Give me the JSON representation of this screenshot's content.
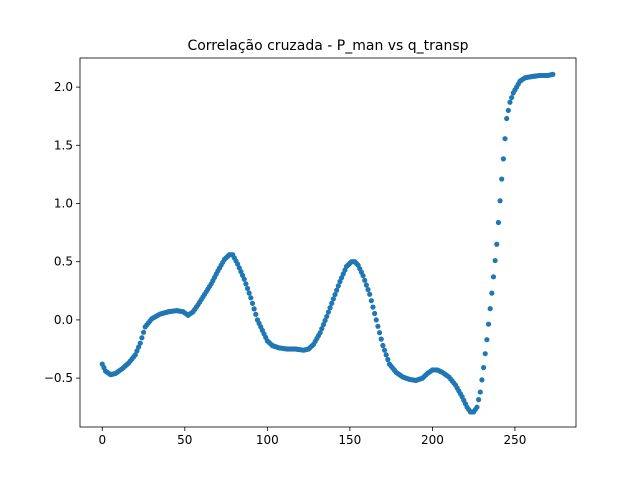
{
  "chart_data": {
    "type": "scatter",
    "title": "Correlação cruzada - P_man vs q_transp",
    "xlabel": "",
    "ylabel": "",
    "xlim": [
      -13.5,
      287
    ],
    "ylim": [
      -0.92,
      2.25
    ],
    "xticks": [
      0,
      50,
      100,
      150,
      200,
      250
    ],
    "yticks": [
      -0.5,
      0.0,
      0.5,
      1.0,
      1.5,
      2.0
    ],
    "ytick_labels": [
      "−0.5",
      "0.0",
      "0.5",
      "1.0",
      "1.5",
      "2.0"
    ],
    "grid": false,
    "legend": "none",
    "marker_color": "#1f77b4",
    "series": [
      {
        "keypoints_x": [
          0,
          2,
          5,
          8,
          12,
          16,
          20,
          23,
          26,
          30,
          35,
          40,
          45,
          49,
          52,
          55,
          58,
          62,
          66,
          70,
          74,
          77,
          79,
          82,
          86,
          90,
          94,
          98,
          100,
          103,
          107,
          112,
          117,
          122,
          125,
          128,
          132,
          136,
          140,
          144,
          148,
          151,
          153,
          155,
          158,
          162,
          166,
          170,
          174,
          178,
          182,
          186,
          190,
          194,
          197,
          200,
          203,
          206,
          210,
          214,
          218,
          221,
          223,
          225,
          227,
          229,
          231,
          233,
          236,
          239,
          242,
          245,
          247,
          249,
          251,
          253,
          256,
          260,
          265,
          270,
          273
        ],
        "keypoints_y": [
          -0.38,
          -0.44,
          -0.47,
          -0.46,
          -0.42,
          -0.37,
          -0.3,
          -0.2,
          -0.06,
          0.01,
          0.05,
          0.07,
          0.08,
          0.07,
          0.04,
          0.07,
          0.13,
          0.22,
          0.31,
          0.42,
          0.52,
          0.56,
          0.56,
          0.48,
          0.35,
          0.19,
          0.0,
          -0.12,
          -0.18,
          -0.22,
          -0.24,
          -0.25,
          -0.25,
          -0.26,
          -0.25,
          -0.21,
          -0.11,
          0.03,
          0.18,
          0.33,
          0.46,
          0.5,
          0.5,
          0.47,
          0.38,
          0.22,
          0.0,
          -0.22,
          -0.38,
          -0.45,
          -0.49,
          -0.51,
          -0.52,
          -0.5,
          -0.46,
          -0.43,
          -0.43,
          -0.45,
          -0.49,
          -0.56,
          -0.66,
          -0.75,
          -0.79,
          -0.79,
          -0.75,
          -0.62,
          -0.41,
          -0.17,
          0.23,
          0.65,
          1.21,
          1.73,
          1.87,
          1.95,
          2.0,
          2.05,
          2.08,
          2.09,
          2.1,
          2.1,
          2.11
        ]
      }
    ]
  }
}
